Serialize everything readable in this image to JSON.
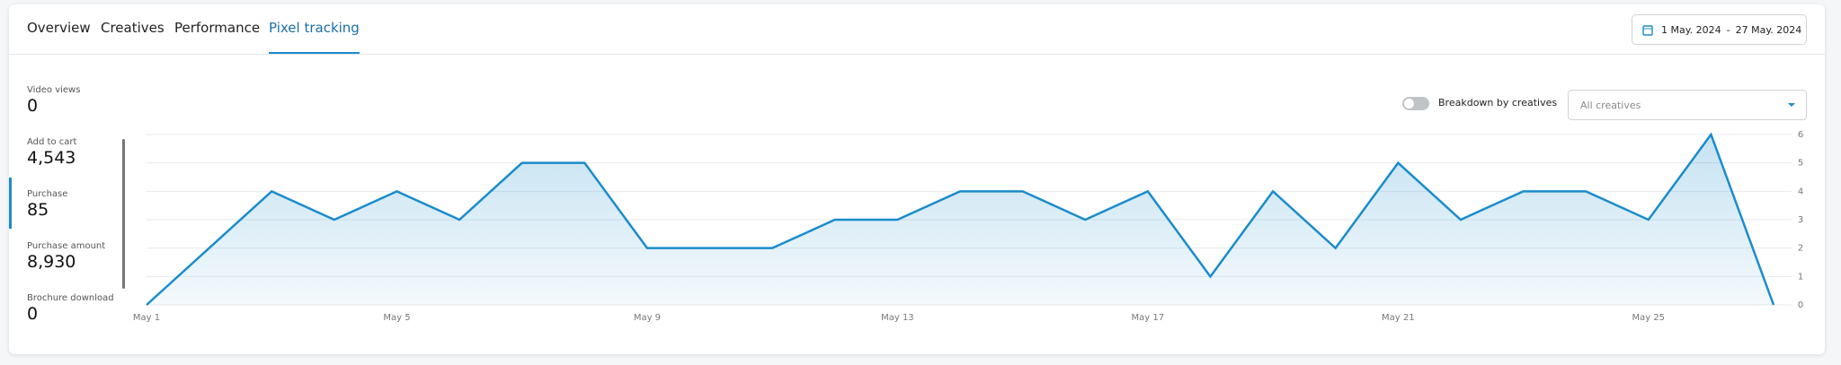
{
  "tabs": [
    "Overview",
    "Creatives",
    "Performance",
    "Pixel tracking"
  ],
  "active_tab": 3,
  "date_range": {
    "start": "1 May. 2024",
    "separator": "-",
    "end": "27 May. 2024"
  },
  "metrics": [
    {
      "label": "Video views",
      "value": "0"
    },
    {
      "label": "Add to cart",
      "value": "4,543"
    },
    {
      "label": "Purchase",
      "value": "85"
    },
    {
      "label": "Purchase amount",
      "value": "8,930"
    },
    {
      "label": "Brochure download",
      "value": "0"
    }
  ],
  "active_metric": 2,
  "toggle_label": "Breakdown by creatives",
  "dropdown_placeholder": "All creatives",
  "chart_data": {
    "type": "area",
    "categories": [
      "May 1",
      null,
      null,
      null,
      "May 5",
      null,
      null,
      null,
      "May 9",
      null,
      null,
      null,
      "May 13",
      null,
      null,
      null,
      "May 17",
      null,
      null,
      null,
      "May 21",
      null,
      null,
      null,
      "May 25",
      null,
      null
    ],
    "values": [
      0,
      2,
      4,
      3,
      4,
      3,
      5,
      5,
      2,
      2,
      2,
      3,
      3,
      4,
      4,
      3,
      4,
      1,
      4,
      2,
      5,
      3,
      4,
      4,
      3,
      6,
      0
    ],
    "color": "#1a8ccc",
    "ylim": [
      0,
      6
    ],
    "yticks": [
      0,
      1,
      2,
      3,
      4,
      5,
      6
    ],
    "y_axis_side": "right",
    "grid": true
  }
}
